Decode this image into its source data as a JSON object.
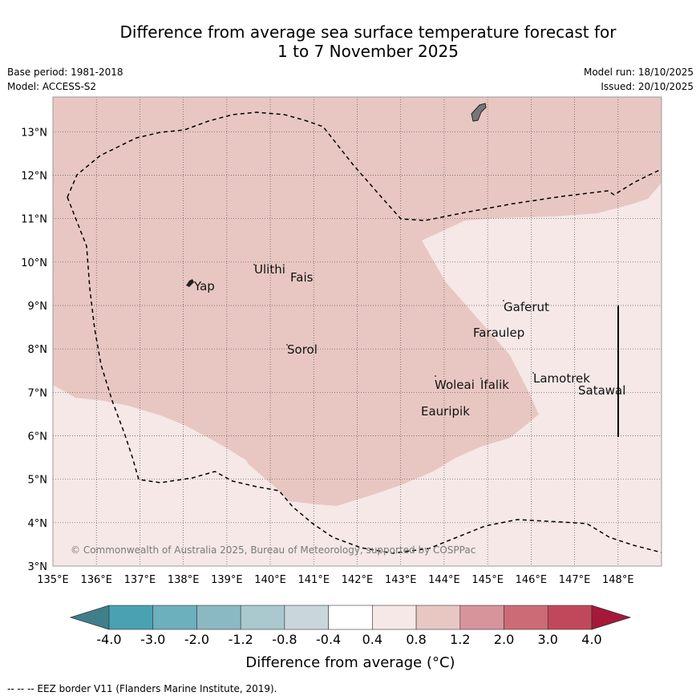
{
  "title": {
    "line1": "Difference from average sea surface temperature forecast for",
    "line2": "1 to 7 November 2025"
  },
  "meta": {
    "base_period": "Base period: 1981-2018",
    "model": "Model: ACCESS-S2",
    "model_run": "Model run: 18/10/2025",
    "issued": "Issued: 20/10/2025"
  },
  "map": {
    "lon_range": [
      135,
      149
    ],
    "lat_range": [
      3,
      13.8
    ],
    "lon_ticks": [
      "135°E",
      "136°E",
      "137°E",
      "138°E",
      "139°E",
      "140°E",
      "141°E",
      "142°E",
      "143°E",
      "144°E",
      "145°E",
      "146°E",
      "147°E",
      "148°E"
    ],
    "lat_ticks": [
      "3°N",
      "4°N",
      "5°N",
      "6°N",
      "7°N",
      "8°N",
      "9°N",
      "10°N",
      "11°N",
      "12°N",
      "13°N"
    ],
    "places": [
      "Yap",
      "Ulithi",
      "Fais",
      "Gaferut",
      "Faraulep",
      "Sorol",
      "Lamotrek",
      "Woleai",
      "Ifalik",
      "Satawal",
      "Eauripik"
    ],
    "copyright": "© Commonwealth of Australia 2025, Bureau of Meteorology, supported by COSPPac",
    "zone_colors": {
      "0.4 to 0.8": "#f5e8e7",
      "0.8 to 1.2": "#e8c7c2"
    }
  },
  "colorbar": {
    "ticks": [
      "-4.0",
      "-3.0",
      "-2.0",
      "-1.2",
      "-0.8",
      "-0.4",
      "0.4",
      "0.8",
      "1.2",
      "2.0",
      "3.0",
      "4.0"
    ],
    "colors": [
      "#3f7f8b",
      "#4aa1b2",
      "#6cafbd",
      "#8ab8c3",
      "#a9c9cf",
      "#c9d7dc",
      "#ffffff",
      "#f5e8e7",
      "#e8c7c2",
      "#d7949a",
      "#cc6b76",
      "#c1485a",
      "#a5183a"
    ],
    "label": "Difference from average (°C)"
  },
  "footer": "--  --  -- EEZ border V11 (Flanders Marine Institute, 2019)."
}
